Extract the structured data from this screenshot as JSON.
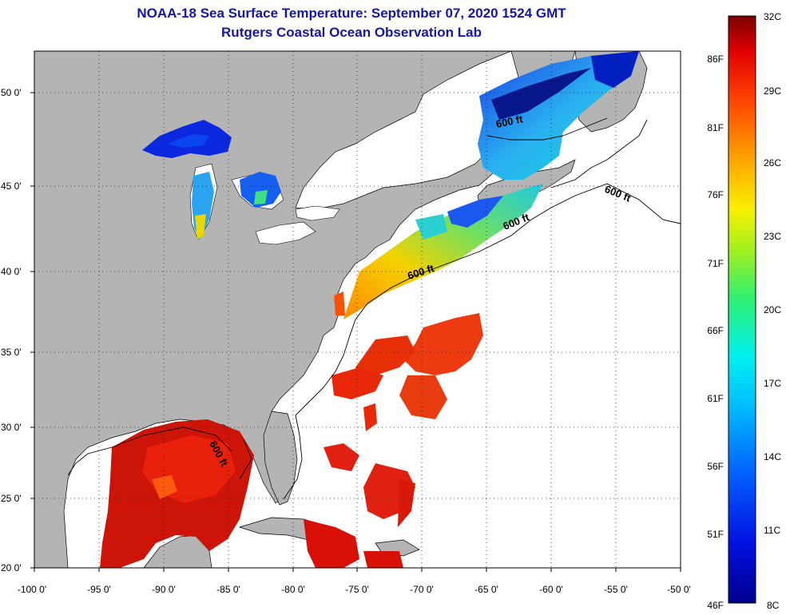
{
  "title_line1": "NOAA-18 Sea Surface Temperature:  September 07, 2020 1524 GMT",
  "title_line2": "Rutgers Coastal Ocean Observation Lab",
  "lat_labels": [
    "50 0'",
    "45 0'",
    "40 0'",
    "35 0'",
    "30 0'",
    "25 0'",
    "20 0'"
  ],
  "lon_labels": [
    "-100 0'",
    "-95 0'",
    "-90 0'",
    "-85 0'",
    "-80 0'",
    "-75 0'",
    "-70 0'",
    "-65 0'",
    "-60 0'",
    "-55 0'",
    "-50 0'"
  ],
  "contour_labels": [
    "600 ft",
    "600 ft",
    "600 ft",
    "600 ft",
    "600 ft"
  ],
  "colorbar": {
    "celsius": [
      "32C",
      "29C",
      "26C",
      "23C",
      "20C",
      "17C",
      "14C",
      "11C",
      "8C"
    ],
    "fahrenheit": [
      "86F",
      "81F",
      "76F",
      "71F",
      "66F",
      "61F",
      "56F",
      "51F",
      "46F"
    ]
  },
  "colors": {
    "land": "#b4b4b4",
    "title": "#1515a8",
    "cold": "#00008c",
    "hot": "#800000"
  }
}
